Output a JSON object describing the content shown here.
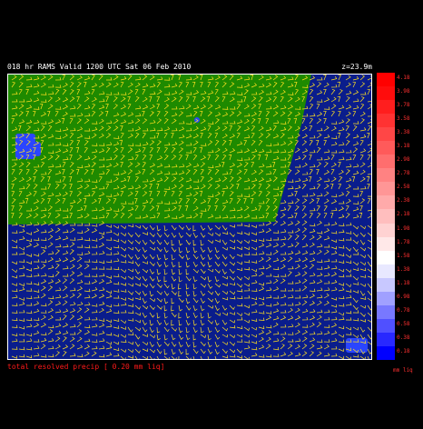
{
  "header": {
    "left_text": "018 hr RAMS Valid 1200 UTC Sat 06 Feb 2010",
    "right_text": "z=23.9m"
  },
  "footer": {
    "text": "total resolved precip [ 0.20 mm liq]"
  },
  "colorbar": {
    "labels": [
      "4.18",
      "3.98",
      "3.78",
      "3.58",
      "3.38",
      "3.18",
      "2.98",
      "2.78",
      "2.58",
      "2.38",
      "2.18",
      "1.98",
      "1.78",
      "1.58",
      "1.38",
      "1.18",
      "0.98",
      "0.78",
      "0.58",
      "0.38",
      "0.18"
    ],
    "colors": [
      "#ff0000",
      "#ff0c0c",
      "#ff1e1e",
      "#ff3232",
      "#ff4646",
      "#ff5a5a",
      "#ff6e6e",
      "#ff8282",
      "#ff9696",
      "#ffaaaa",
      "#ffbebe",
      "#ffd2d2",
      "#ffe8e8",
      "#ffffff",
      "#e8e8ff",
      "#c8c8ff",
      "#a0a0ff",
      "#7878ff",
      "#5050ff",
      "#2828ff",
      "#0000ff"
    ],
    "units": "mm liq"
  },
  "map": {
    "ocean_color": "#0a1d8c",
    "land_color": "#1e8a00",
    "barb_color": "#ffe020",
    "patch_color": "#2a45ff"
  }
}
